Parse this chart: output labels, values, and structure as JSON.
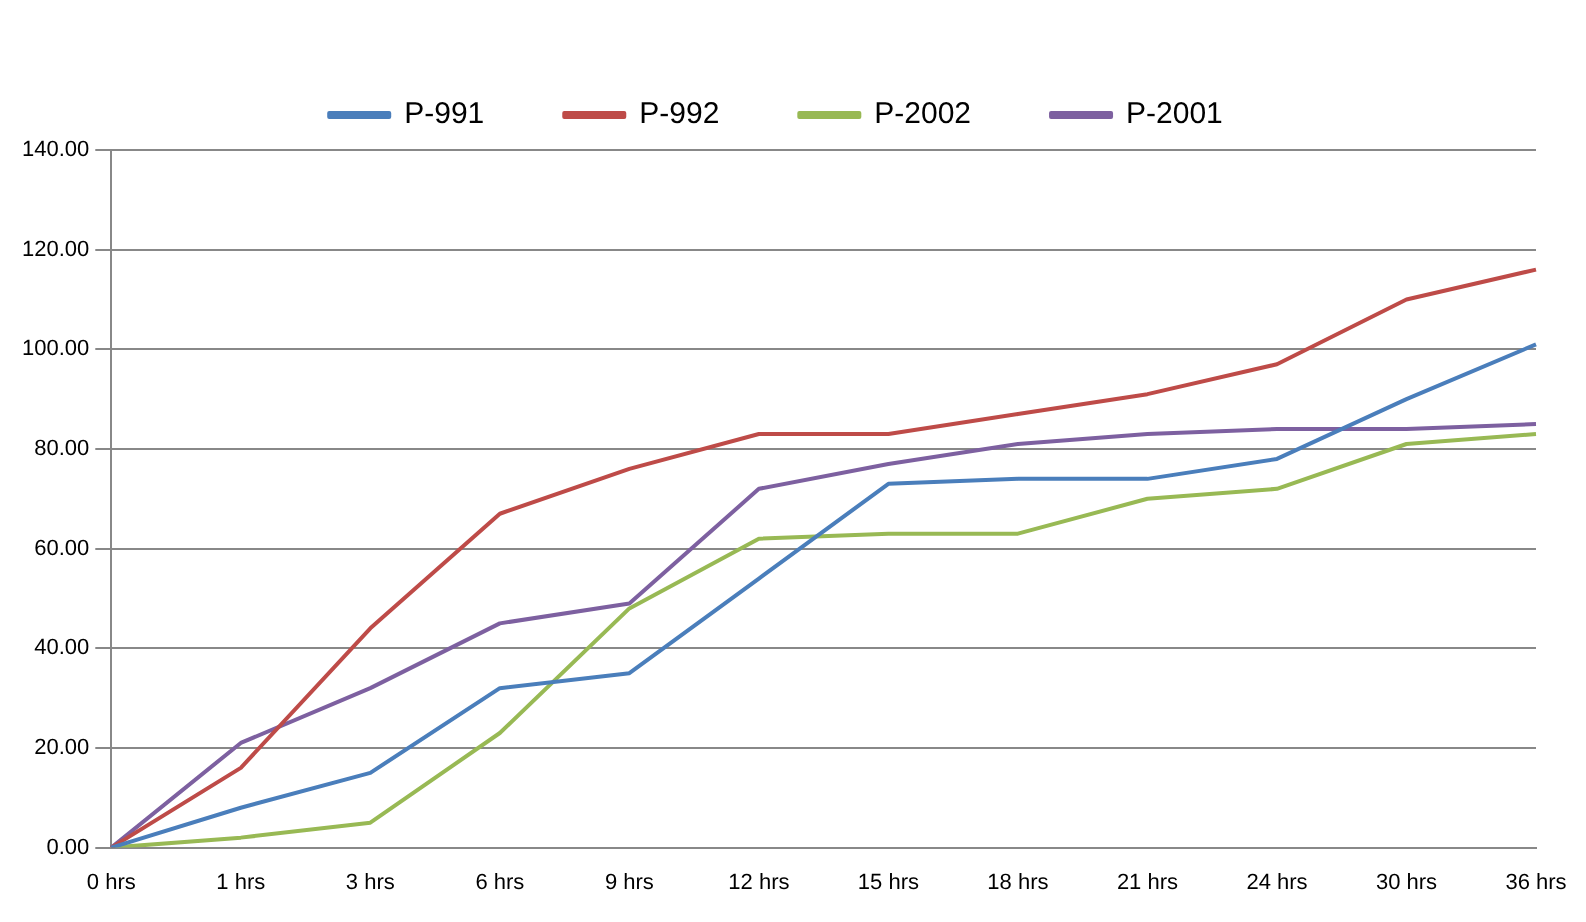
{
  "chart_data": {
    "type": "line",
    "categories": [
      "0 hrs",
      "1 hrs",
      "3 hrs",
      "6 hrs",
      "9 hrs",
      "12 hrs",
      "15 hrs",
      "18 hrs",
      "21 hrs",
      "24 hrs",
      "30 hrs",
      "36 hrs"
    ],
    "series": [
      {
        "name": "P-991",
        "color": "#4a7ebb",
        "values": [
          0,
          8,
          15,
          32,
          35,
          54,
          73,
          74,
          74,
          78,
          90,
          101
        ]
      },
      {
        "name": "P-992",
        "color": "#be4b48",
        "values": [
          0,
          16,
          44,
          67,
          76,
          83,
          83,
          87,
          91,
          97,
          110,
          116
        ]
      },
      {
        "name": "P-2002",
        "color": "#98b954",
        "values": [
          0,
          2,
          5,
          23,
          48,
          62,
          63,
          63,
          70,
          72,
          81,
          83
        ]
      },
      {
        "name": "P-2001",
        "color": "#7d60a0",
        "values": [
          0,
          21,
          32,
          45,
          49,
          72,
          77,
          81,
          83,
          84,
          84,
          85
        ]
      }
    ],
    "ylim": [
      0,
      140
    ],
    "yticks": [
      {
        "value": 0,
        "label": "0.00"
      },
      {
        "value": 20,
        "label": "20.00"
      },
      {
        "value": 40,
        "label": "40.00"
      },
      {
        "value": 60,
        "label": "60.00"
      },
      {
        "value": 80,
        "label": "80.00"
      },
      {
        "value": 100,
        "label": "100.00"
      },
      {
        "value": 120,
        "label": "120.00"
      },
      {
        "value": 140,
        "label": "140.00"
      }
    ],
    "grid": "y",
    "legend": "top",
    "marker": "none"
  }
}
